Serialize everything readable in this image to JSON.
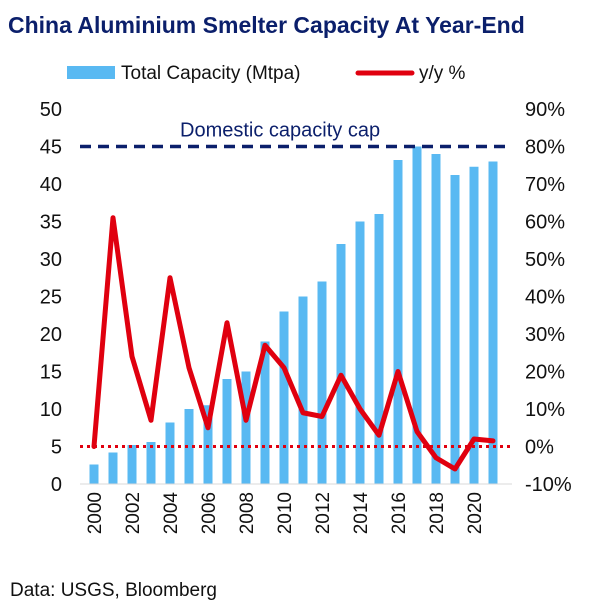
{
  "title": "China Aluminium Smelter Capacity At Year-End",
  "source": "Data: USGS, Bloomberg",
  "chart_data": {
    "type": "bar",
    "x": [
      2000,
      2001,
      2002,
      2003,
      2004,
      2005,
      2006,
      2007,
      2008,
      2009,
      2010,
      2011,
      2012,
      2013,
      2014,
      2015,
      2016,
      2017,
      2018,
      2019,
      2020,
      2021
    ],
    "x_tick_labels": [
      "2000",
      "2002",
      "2004",
      "2006",
      "2008",
      "2010",
      "2012",
      "2014",
      "2016",
      "2018",
      "2020"
    ],
    "series": [
      {
        "name": "Total Capacity (Mtpa)",
        "type": "bar",
        "axis": "left",
        "color": "#59b9f2",
        "values": [
          2.6,
          4.2,
          5.2,
          5.6,
          8.2,
          10.0,
          10.5,
          14.0,
          15.0,
          19.0,
          23.0,
          25.0,
          27.0,
          32.0,
          35.0,
          36.0,
          43.2,
          45.0,
          44.0,
          41.2,
          42.3,
          43.0
        ]
      },
      {
        "name": "y/y %",
        "type": "line",
        "axis": "right",
        "color": "#e0000f",
        "values": [
          0,
          61,
          24,
          7,
          45,
          21,
          5,
          33,
          7,
          27,
          21,
          9,
          8,
          19,
          10,
          3,
          20,
          4,
          -3,
          -6,
          2,
          1.5
        ]
      }
    ],
    "left_axis": {
      "min": 0,
      "max": 50,
      "ticks": [
        0,
        5,
        10,
        15,
        20,
        25,
        30,
        35,
        40,
        45,
        50
      ]
    },
    "right_axis": {
      "min": -10,
      "max": 90,
      "ticks": [
        "-10%",
        "0%",
        "10%",
        "20%",
        "30%",
        "40%",
        "50%",
        "60%",
        "70%",
        "80%",
        "90%"
      ]
    },
    "reference_lines": [
      {
        "label": "Domestic capacity cap",
        "axis": "left",
        "value": 45,
        "color": "#0b1f6b",
        "style": "dashed"
      },
      {
        "label": "",
        "axis": "right",
        "value": 0,
        "color": "#e0000f",
        "style": "dotted"
      }
    ],
    "legend_position": "top",
    "grid": false
  }
}
